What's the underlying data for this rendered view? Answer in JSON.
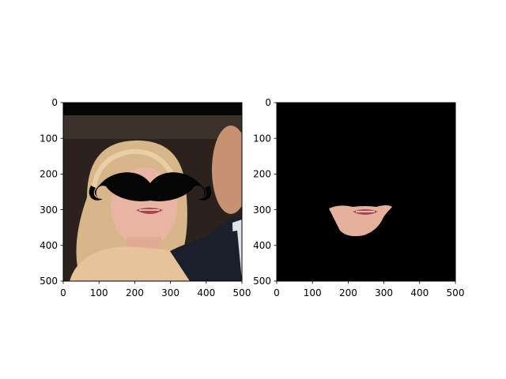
{
  "chart_data": [
    {
      "type": "image",
      "description": "Photo with a black mustache drawn over the face",
      "xlim": [
        0,
        500
      ],
      "ylim": [
        500,
        0
      ],
      "xticks": [
        0,
        100,
        200,
        300,
        400,
        500
      ],
      "yticks": [
        0,
        100,
        200,
        300,
        400,
        500
      ],
      "xtick_labels": [
        "0",
        "100",
        "200",
        "300",
        "400",
        "500"
      ],
      "ytick_labels": [
        "0",
        "100",
        "200",
        "300",
        "400",
        "500"
      ]
    },
    {
      "type": "image",
      "description": "Black mask image showing only the mouth region of the face",
      "xlim": [
        0,
        500
      ],
      "ylim": [
        500,
        0
      ],
      "xticks": [
        0,
        100,
        200,
        300,
        400,
        500
      ],
      "yticks": [
        0,
        100,
        200,
        300,
        400,
        500
      ],
      "xtick_labels": [
        "0",
        "100",
        "200",
        "300",
        "400",
        "500"
      ],
      "ytick_labels": [
        "0",
        "100",
        "200",
        "300",
        "400",
        "500"
      ]
    }
  ],
  "colors": {
    "photo_background": "#2a211d",
    "hair": "#d8b98c",
    "skin": "#e8b39f",
    "suit": "#1a1d2a",
    "mask_background": "#000000",
    "mustache": "#000000",
    "lips": "#b2444a"
  }
}
